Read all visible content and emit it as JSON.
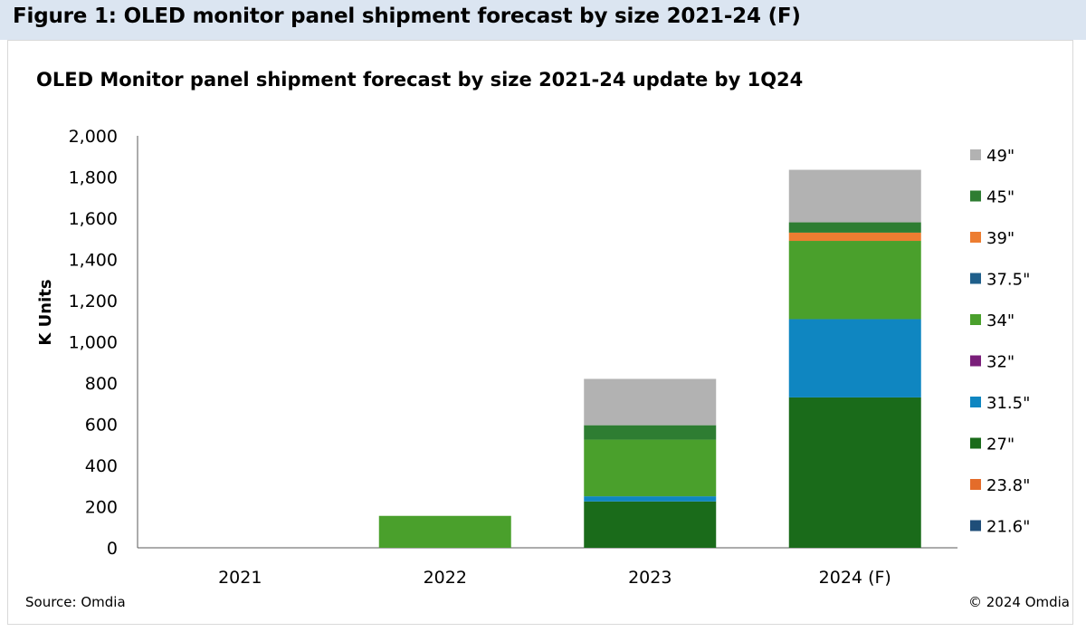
{
  "figure_title": "Figure 1: OLED monitor panel shipment forecast by size 2021-24 (F)",
  "source": "Source: Omdia",
  "copyright": "© 2024 Omdia",
  "colors": {
    "header_bg": "#dbe5f1",
    "49": "#b2b2b2",
    "45": "#2e7d32",
    "39": "#ed7d31",
    "37.5": "#1f5f8b",
    "34": "#4aa02c",
    "32": "#7a1f7a",
    "31.5": "#0f86c1",
    "27": "#1a6b1a",
    "23.8": "#e46c2a",
    "21.6": "#1f4e79"
  },
  "chart_data": {
    "type": "bar",
    "stacked": true,
    "title": "OLED Monitor panel shipment forecast by size 2021-24 update by 1Q24",
    "ylabel": "K Units",
    "xlabel": "",
    "ylim": [
      0,
      2000
    ],
    "yticks": [
      "0",
      "200",
      "400",
      "600",
      "800",
      "1,000",
      "1,200",
      "1,400",
      "1,600",
      "1,800",
      "2,000"
    ],
    "ytick_values": [
      0,
      200,
      400,
      600,
      800,
      1000,
      1200,
      1400,
      1600,
      1800,
      2000
    ],
    "categories": [
      "2021",
      "2022",
      "2023",
      "2024 (F)"
    ],
    "grid": false,
    "legend_position": "right",
    "series": [
      {
        "name": "21.6\"",
        "key": "21.6",
        "values": [
          0,
          0,
          0,
          0
        ]
      },
      {
        "name": "23.8\"",
        "key": "23.8",
        "values": [
          0,
          0,
          0,
          0
        ]
      },
      {
        "name": "27\"",
        "key": "27",
        "values": [
          0,
          0,
          225,
          730
        ]
      },
      {
        "name": "31.5\"",
        "key": "31.5",
        "values": [
          0,
          0,
          25,
          380
        ]
      },
      {
        "name": "32\"",
        "key": "32",
        "values": [
          0,
          0,
          0,
          0
        ]
      },
      {
        "name": "34\"",
        "key": "34",
        "values": [
          0,
          155,
          275,
          380
        ]
      },
      {
        "name": "37.5\"",
        "key": "37.5",
        "values": [
          0,
          0,
          0,
          0
        ]
      },
      {
        "name": "39\"",
        "key": "39",
        "values": [
          0,
          0,
          0,
          40
        ]
      },
      {
        "name": "45\"",
        "key": "45",
        "values": [
          0,
          0,
          70,
          50
        ]
      },
      {
        "name": "49\"",
        "key": "49",
        "values": [
          0,
          0,
          225,
          255
        ]
      }
    ]
  }
}
